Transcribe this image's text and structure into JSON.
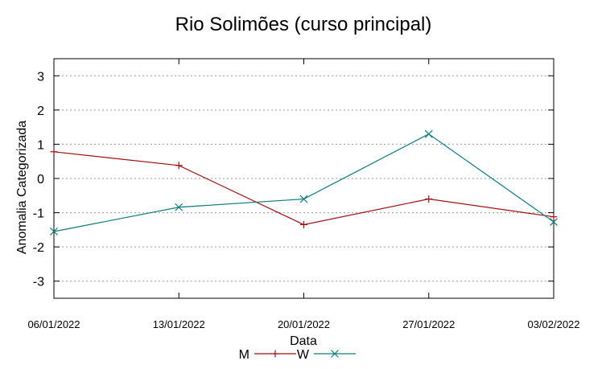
{
  "chart_data": {
    "type": "line",
    "title": "Rio Solimões (curso principal)",
    "xlabel": "Data",
    "ylabel": "Anomalia Categorizada",
    "categories": [
      "06/01/2022",
      "13/01/2022",
      "20/01/2022",
      "27/01/2022",
      "03/02/2022"
    ],
    "ylim": [
      -3.5,
      3.5
    ],
    "yticks": [
      3,
      2,
      1,
      0,
      -1,
      -2,
      -3
    ],
    "grid": true,
    "legend": "bottom-center",
    "series": [
      {
        "name": "M",
        "color": "#a01010",
        "marker": "plus",
        "values": [
          0.78,
          0.38,
          -1.35,
          -0.6,
          -1.12
        ]
      },
      {
        "name": "W",
        "color": "#0e7a80",
        "marker": "x",
        "values": [
          -1.55,
          -0.84,
          -0.6,
          1.3,
          -1.27
        ]
      }
    ]
  }
}
